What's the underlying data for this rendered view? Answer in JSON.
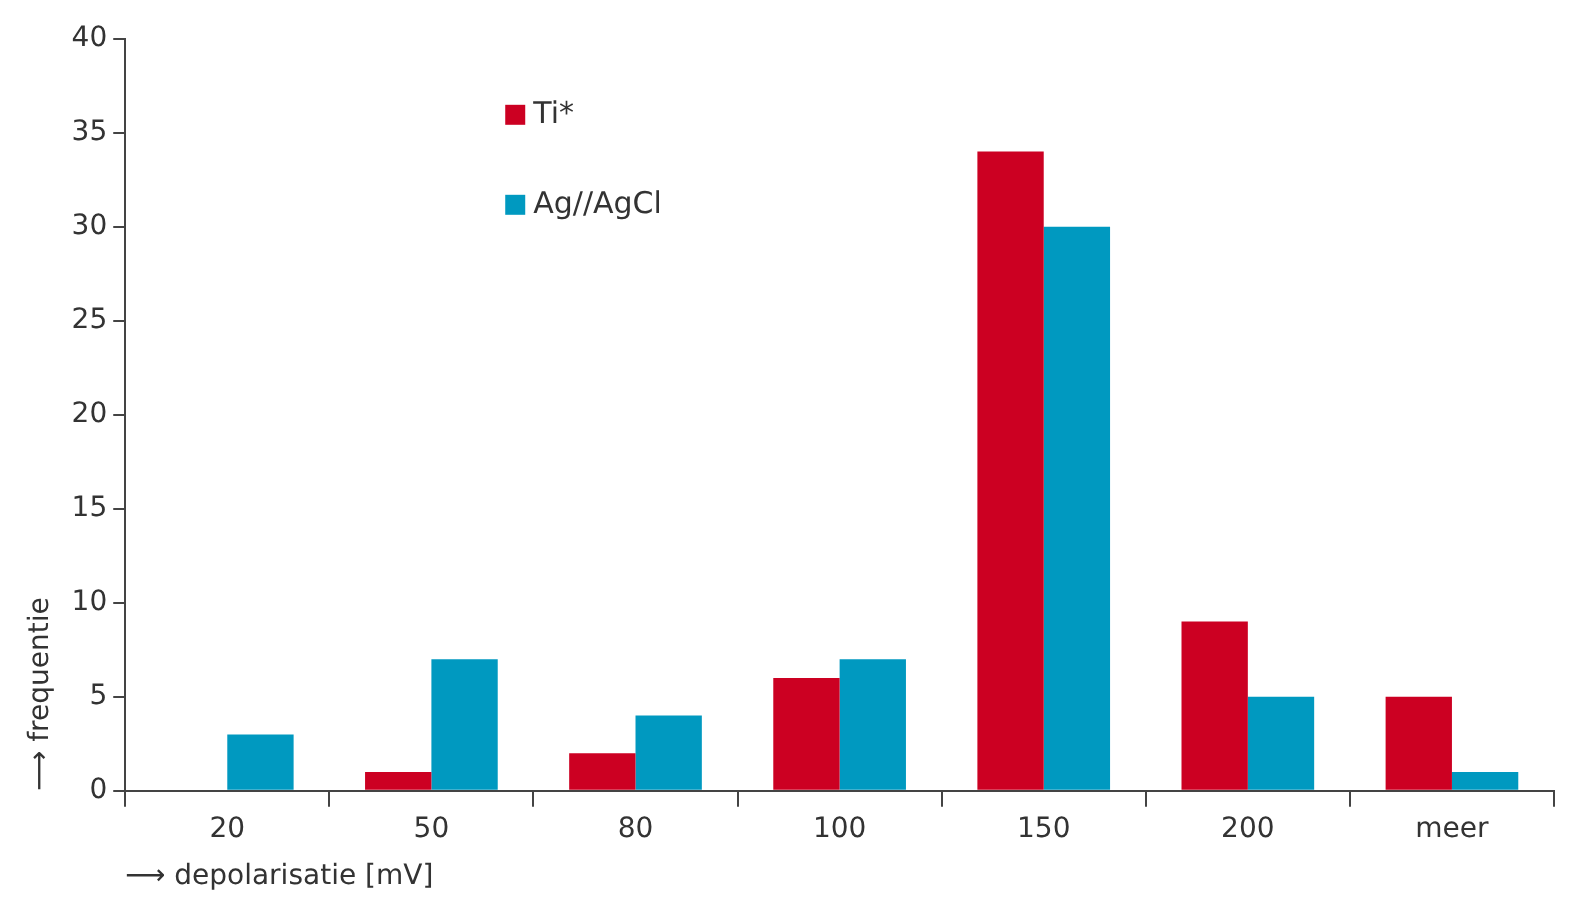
{
  "chart_data": {
    "type": "bar",
    "xlabel": "⟶ depolarisatie [mV]",
    "ylabel": "⟶ frequentie",
    "categories": [
      "20",
      "50",
      "80",
      "100",
      "150",
      "200",
      "meer"
    ],
    "series": [
      {
        "name": "Ti*",
        "color": "#cc0022",
        "values": [
          0,
          1,
          2,
          6,
          34,
          9,
          5
        ]
      },
      {
        "name": "Ag//AgCl",
        "color": "#0099c0",
        "values": [
          3,
          7,
          4,
          7,
          30,
          5,
          1
        ]
      }
    ],
    "ylim": [
      0,
      40
    ],
    "yticks": [
      0,
      5,
      10,
      15,
      20,
      25,
      30,
      35,
      40
    ],
    "grid": false,
    "legend": "top left"
  }
}
